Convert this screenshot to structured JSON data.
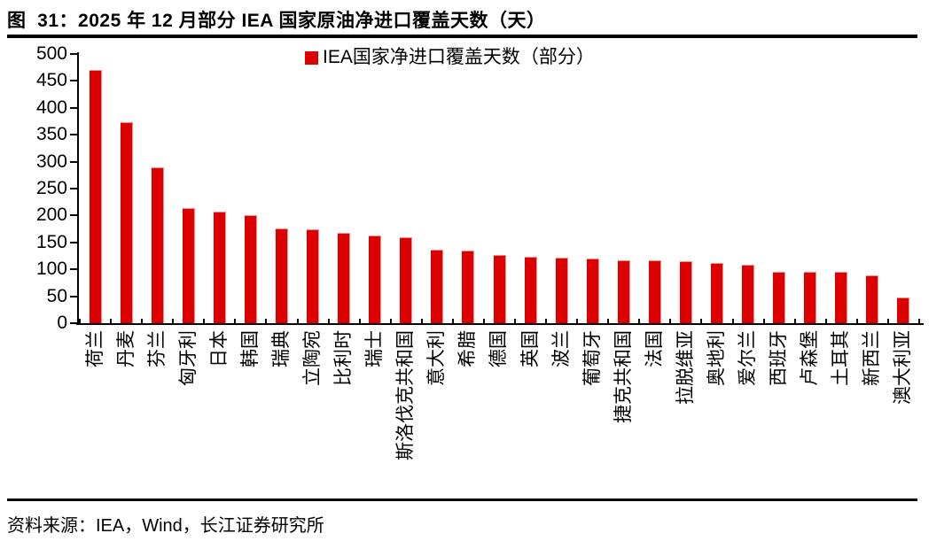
{
  "header": {
    "title": "图  31：2025 年 12 月部分 IEA 国家原油净进口覆盖天数（天）"
  },
  "footer": {
    "source": "资料来源：IEA，Wind，长江证券研究所"
  },
  "chart_data": {
    "type": "bar",
    "title": "图 31：2025 年 12 月部分 IEA 国家原油净进口覆盖天数（天）",
    "legend_label": "IEA国家净进口覆盖天数（部分）",
    "legend_position": "top-center",
    "categories": [
      "荷兰",
      "丹麦",
      "芬兰",
      "匈牙利",
      "日本",
      "韩国",
      "瑞典",
      "立陶宛",
      "比利时",
      "瑞士",
      "斯洛伐克共和国",
      "意大利",
      "希腊",
      "德国",
      "英国",
      "波兰",
      "葡萄牙",
      "捷克共和国",
      "法国",
      "拉脱维亚",
      "奥地利",
      "爱尔兰",
      "西班牙",
      "卢森堡",
      "土耳其",
      "新西兰",
      "澳大利亚"
    ],
    "values": [
      470,
      374,
      290,
      214,
      208,
      200,
      176,
      175,
      167,
      163,
      159,
      136,
      135,
      127,
      123,
      121,
      120,
      117,
      117,
      115,
      112,
      109,
      95,
      95,
      95,
      88,
      48
    ],
    "xlabel": "",
    "ylabel": "",
    "ylim": [
      0,
      500
    ],
    "ytick_step": 50,
    "yticks": [
      0,
      50,
      100,
      150,
      200,
      250,
      300,
      350,
      400,
      450,
      500
    ],
    "grid": false,
    "bar_color": "#dc0000",
    "axis_color": "#000000"
  }
}
